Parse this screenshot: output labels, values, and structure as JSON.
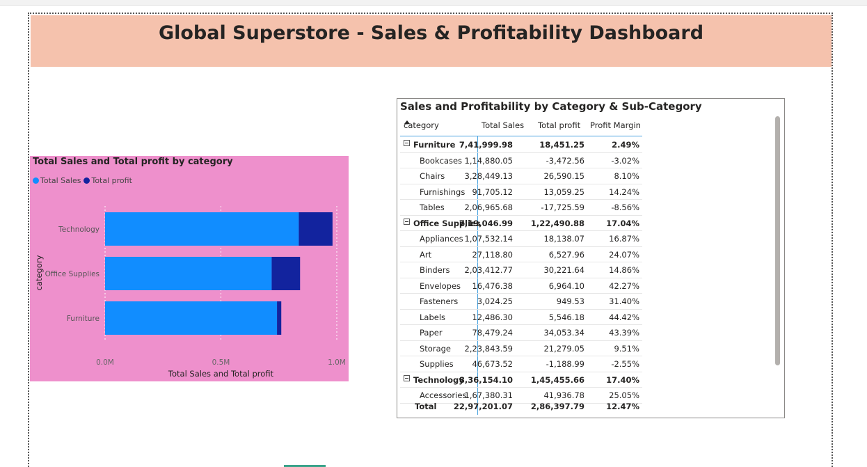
{
  "dashboard": {
    "title": "Global Superstore - Sales & Profitability Dashboard"
  },
  "bar_chart": {
    "title": "Total Sales and Total profit by category",
    "legend": [
      {
        "label": "Total Sales",
        "color": "#118dff"
      },
      {
        "label": "Total profit",
        "color": "#12239e"
      }
    ]
  },
  "chart_data": {
    "type": "bar",
    "orientation": "horizontal",
    "stacked": true,
    "title": "Total Sales and Total profit by category",
    "categories": [
      "Technology",
      "Office Supplies",
      "Furniture"
    ],
    "series": [
      {
        "name": "Total Sales",
        "values": [
          836154.1,
          719046.99,
          741999.98
        ],
        "color": "#118dff"
      },
      {
        "name": "Total profit",
        "values": [
          145455.66,
          122490.88,
          18451.25
        ],
        "color": "#12239e"
      }
    ],
    "xlabel": "Total Sales and Total profit",
    "ylabel": "category",
    "xlim": [
      0,
      1000000
    ],
    "xticks": [
      0,
      500000,
      1000000
    ],
    "xtick_labels": [
      "0.0M",
      "0.5M",
      "1.0M"
    ],
    "grid": true,
    "legend_position": "top-left"
  },
  "matrix": {
    "title": "Sales and Profitability by Category & Sub-Category",
    "headers": {
      "category": "category",
      "sales": "Total Sales",
      "profit": "Total profit",
      "margin": "Profit Margin"
    },
    "rows": [
      {
        "type": "cat",
        "name": "Furniture",
        "sales": "7,41,999.98",
        "profit": "18,451.25",
        "margin": "2.49%"
      },
      {
        "type": "sub",
        "name": "Bookcases",
        "sales": "1,14,880.05",
        "profit": "-3,472.56",
        "margin": "-3.02%"
      },
      {
        "type": "sub",
        "name": "Chairs",
        "sales": "3,28,449.13",
        "profit": "26,590.15",
        "margin": "8.10%"
      },
      {
        "type": "sub",
        "name": "Furnishings",
        "sales": "91,705.12",
        "profit": "13,059.25",
        "margin": "14.24%"
      },
      {
        "type": "sub",
        "name": "Tables",
        "sales": "2,06,965.68",
        "profit": "-17,725.59",
        "margin": "-8.56%"
      },
      {
        "type": "cat",
        "name": "Office Supplies",
        "sales": "7,19,046.99",
        "profit": "1,22,490.88",
        "margin": "17.04%"
      },
      {
        "type": "sub",
        "name": "Appliances",
        "sales": "1,07,532.14",
        "profit": "18,138.07",
        "margin": "16.87%"
      },
      {
        "type": "sub",
        "name": "Art",
        "sales": "27,118.80",
        "profit": "6,527.96",
        "margin": "24.07%"
      },
      {
        "type": "sub",
        "name": "Binders",
        "sales": "2,03,412.77",
        "profit": "30,221.64",
        "margin": "14.86%"
      },
      {
        "type": "sub",
        "name": "Envelopes",
        "sales": "16,476.38",
        "profit": "6,964.10",
        "margin": "42.27%"
      },
      {
        "type": "sub",
        "name": "Fasteners",
        "sales": "3,024.25",
        "profit": "949.53",
        "margin": "31.40%"
      },
      {
        "type": "sub",
        "name": "Labels",
        "sales": "12,486.30",
        "profit": "5,546.18",
        "margin": "44.42%"
      },
      {
        "type": "sub",
        "name": "Paper",
        "sales": "78,479.24",
        "profit": "34,053.34",
        "margin": "43.39%"
      },
      {
        "type": "sub",
        "name": "Storage",
        "sales": "2,23,843.59",
        "profit": "21,279.05",
        "margin": "9.51%"
      },
      {
        "type": "sub",
        "name": "Supplies",
        "sales": "46,673.52",
        "profit": "-1,188.99",
        "margin": "-2.55%"
      },
      {
        "type": "cat",
        "name": "Technology",
        "sales": "8,36,154.10",
        "profit": "1,45,455.66",
        "margin": "17.40%"
      },
      {
        "type": "sub",
        "name": "Accessories",
        "sales": "1,67,380.31",
        "profit": "41,936.78",
        "margin": "25.05%"
      }
    ],
    "total": {
      "name": "Total",
      "sales": "22,97,201.07",
      "profit": "2,86,397.79",
      "margin": "12.47%"
    }
  }
}
